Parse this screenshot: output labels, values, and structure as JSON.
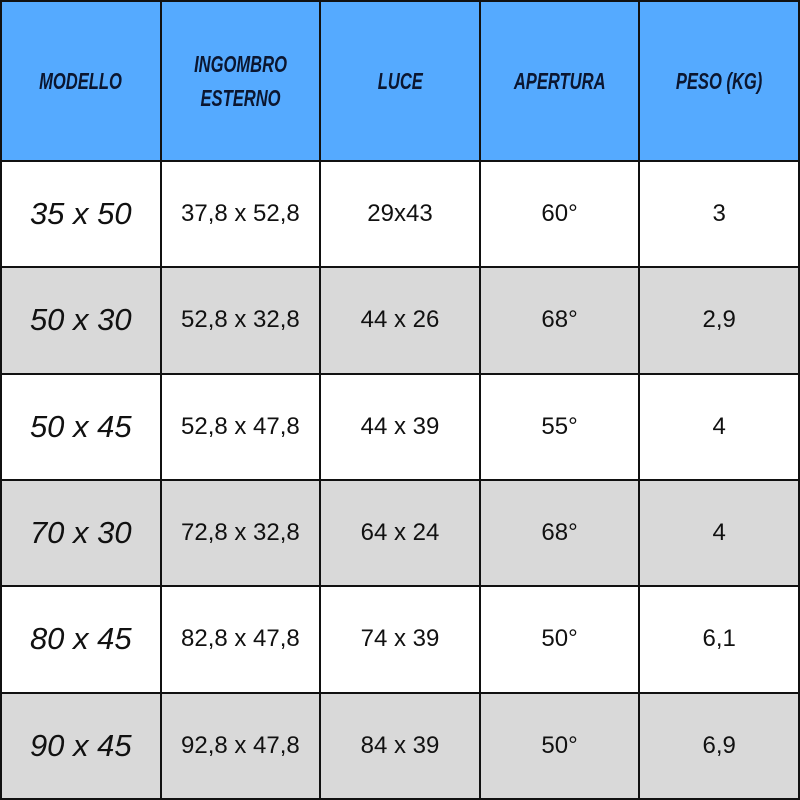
{
  "colors": {
    "header_bg": "#55aaff",
    "header_text": "#0b1630",
    "alt_row_bg": "#d9d9d9",
    "border": "#111111"
  },
  "headers": [
    "MODELLO",
    "INGOMBRO\nESTERNO",
    "LUCE",
    "APERTURA",
    "PESO (KG)"
  ],
  "rows": [
    [
      "35 x 50",
      "37,8 x 52,8",
      "29x43",
      "60°",
      "3"
    ],
    [
      "50 x 30",
      "52,8 x 32,8",
      "44 x 26",
      "68°",
      "2,9"
    ],
    [
      "50 x 45",
      "52,8 x 47,8",
      "44 x 39",
      "55°",
      "4"
    ],
    [
      "70 x 30",
      "72,8 x 32,8",
      "64 x 24",
      "68°",
      "4"
    ],
    [
      "80 x 45",
      "82,8 x 47,8",
      "74 x 39",
      "50°",
      "6,1"
    ],
    [
      "90 x 45",
      "92,8 x 47,8",
      "84 x 39",
      "50°",
      "6,9"
    ]
  ]
}
